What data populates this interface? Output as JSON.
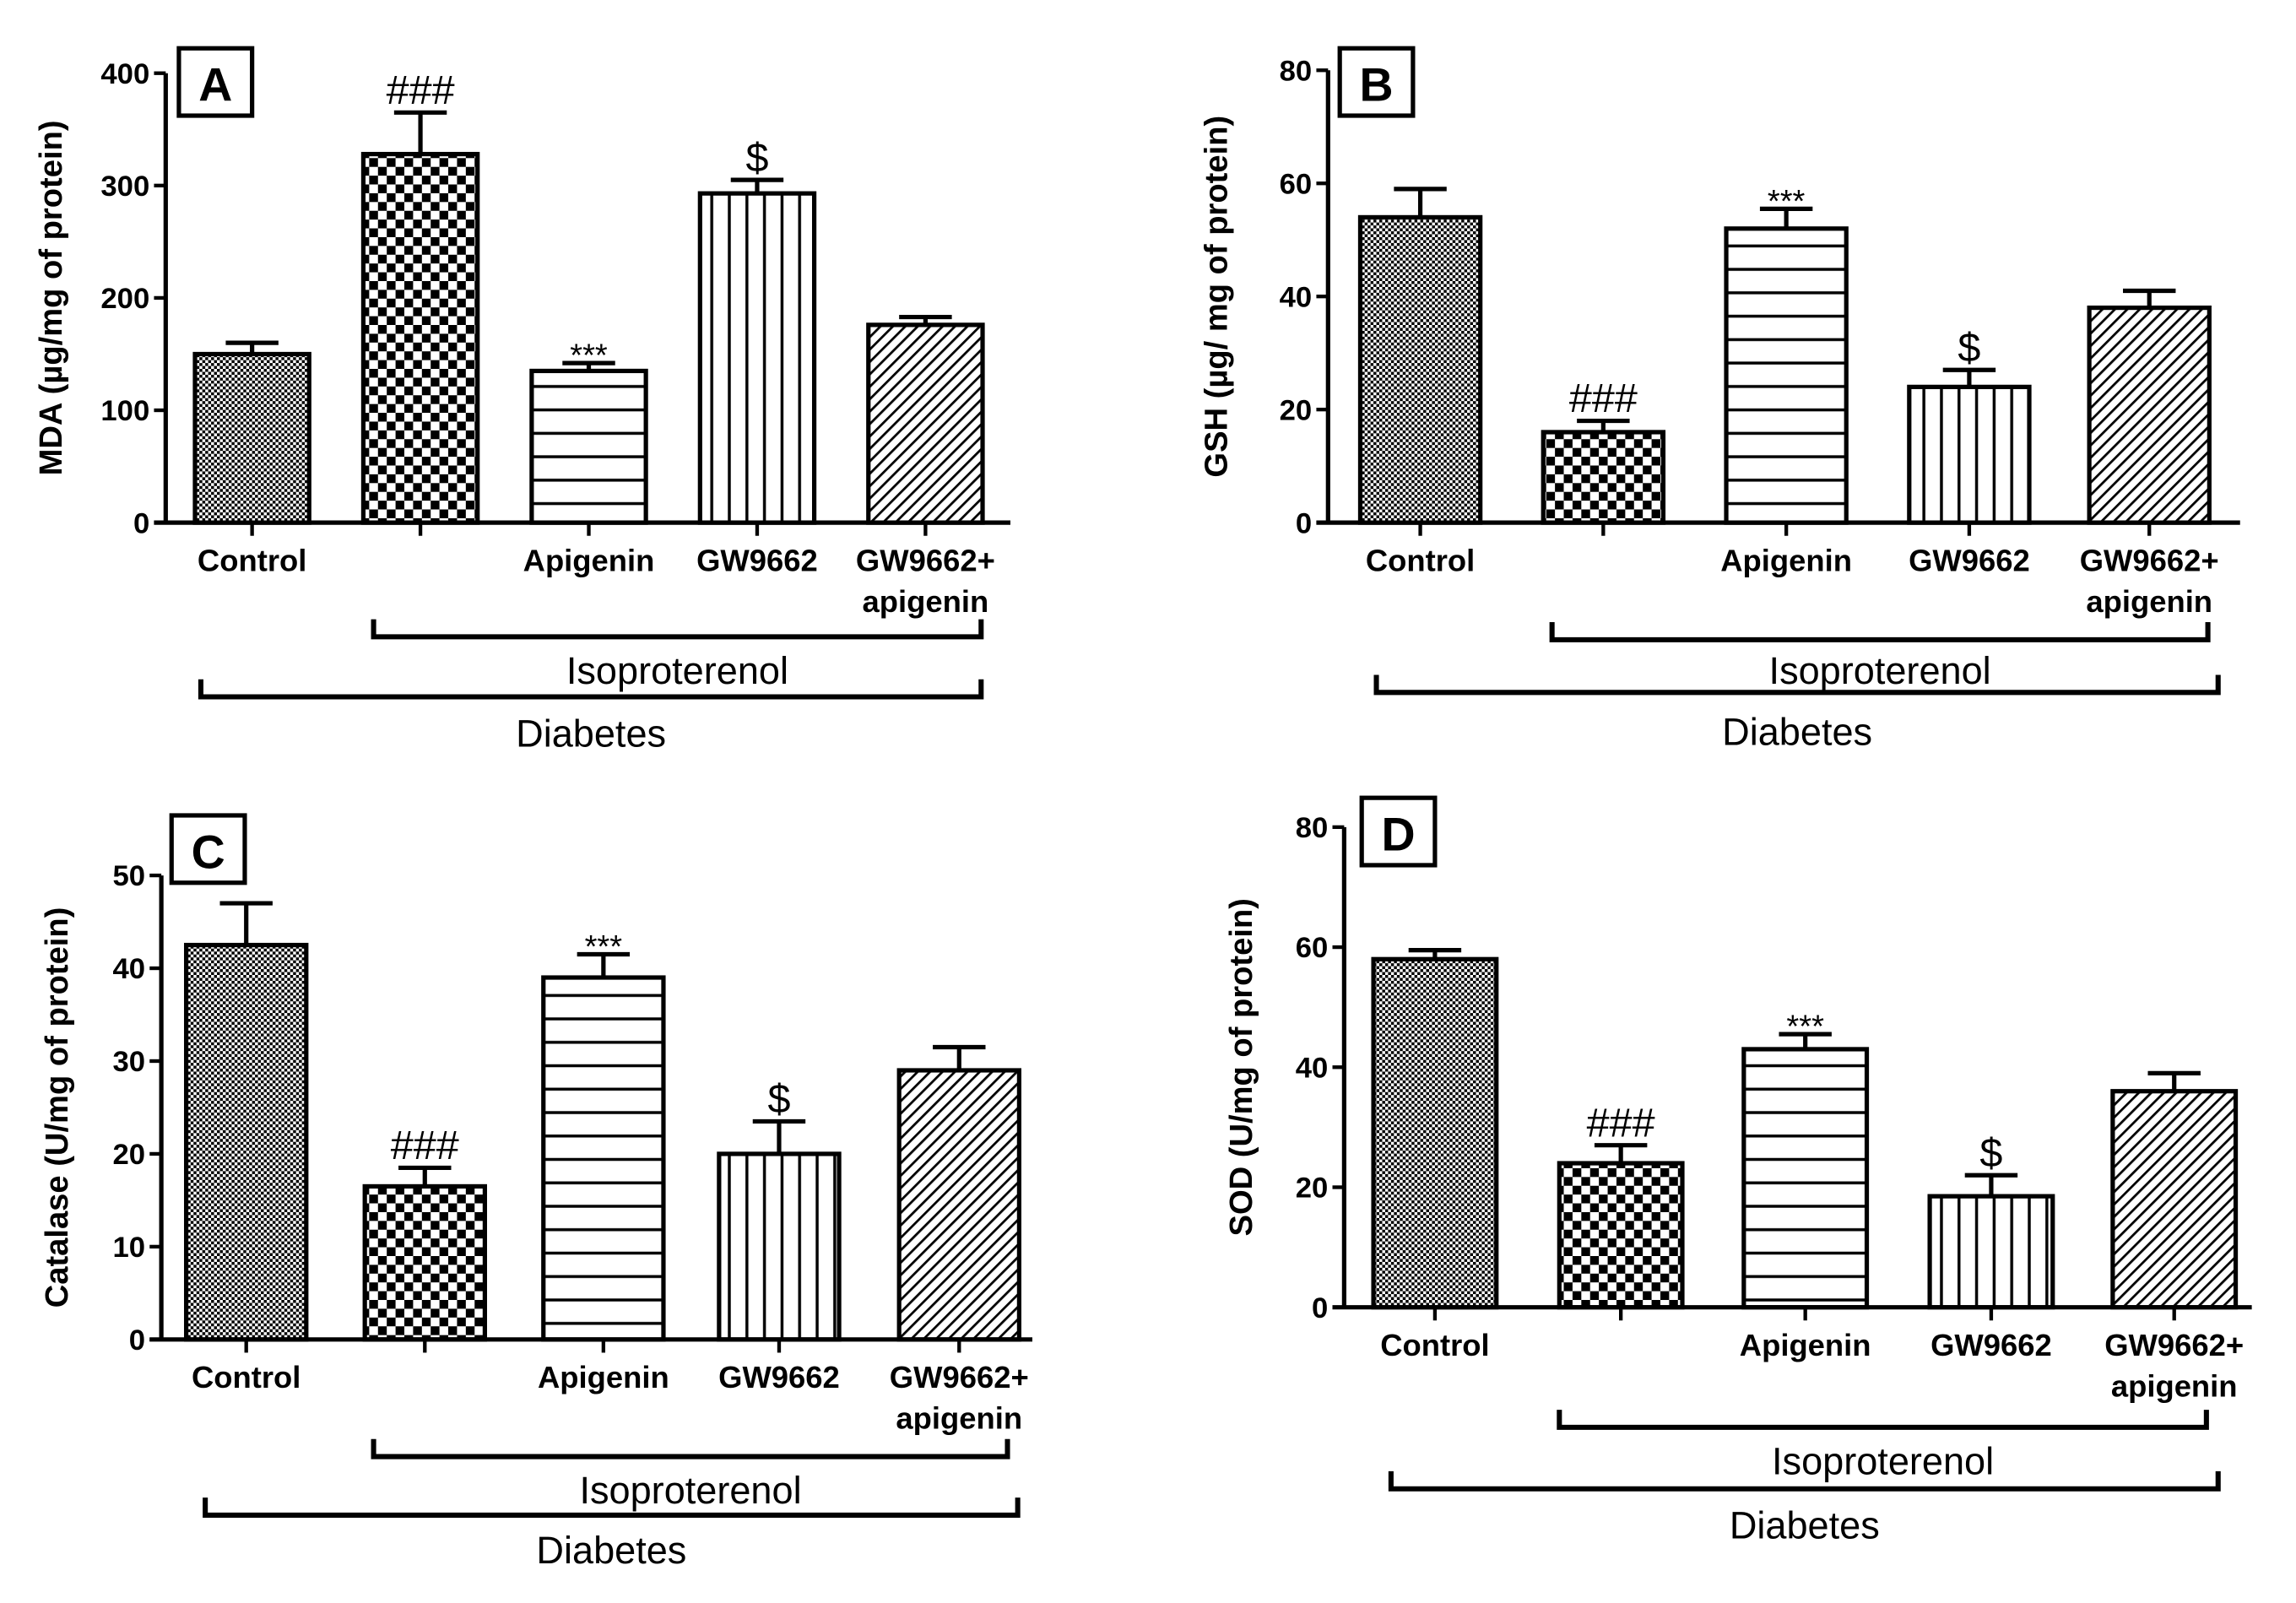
{
  "chart_data": [
    {
      "type": "bar",
      "panel": "A",
      "ylabel": "MDA (µg/mg of protein)",
      "ylim": [
        0,
        400
      ],
      "yticks": [
        0,
        100,
        200,
        300,
        400
      ],
      "categories": [
        "Control",
        "",
        "Apigenin",
        "GW9662",
        "GW9662+\napigenin"
      ],
      "values": [
        150,
        328,
        135,
        293,
        176
      ],
      "errors": [
        10,
        37,
        7,
        12,
        7
      ],
      "annotations": [
        "",
        "###",
        "***",
        "$",
        ""
      ],
      "groups": [
        {
          "label": "Isoproterenol",
          "from": 1,
          "to": 4
        },
        {
          "label": "Diabetes",
          "from": 0,
          "to": 4
        }
      ]
    },
    {
      "type": "bar",
      "panel": "B",
      "ylabel": "GSH (µg/ mg of protein)",
      "ylim": [
        0,
        80
      ],
      "yticks": [
        0,
        20,
        40,
        60,
        80
      ],
      "categories": [
        "Control",
        "",
        "Apigenin",
        "GW9662",
        "GW9662+\napigenin"
      ],
      "values": [
        54,
        16,
        52,
        24,
        38
      ],
      "errors": [
        5,
        2,
        3.5,
        3,
        3
      ],
      "annotations": [
        "",
        "###",
        "***",
        "$",
        ""
      ],
      "groups": [
        {
          "label": "Isoproterenol",
          "from": 1,
          "to": 4
        },
        {
          "label": "Diabetes",
          "from": 0,
          "to": 4
        }
      ]
    },
    {
      "type": "bar",
      "panel": "C",
      "ylabel": "Catalase (U/mg of protein)",
      "ylim": [
        0,
        50
      ],
      "yticks": [
        0,
        10,
        20,
        30,
        40,
        50
      ],
      "categories": [
        "Control",
        "",
        "Apigenin",
        "GW9662",
        "GW9662+\napigenin"
      ],
      "values": [
        42.5,
        16.5,
        39,
        20,
        29
      ],
      "errors": [
        4.5,
        2,
        2.5,
        3.5,
        2.5
      ],
      "annotations": [
        "",
        "###",
        "***",
        "$",
        ""
      ],
      "groups": [
        {
          "label": "Isoproterenol",
          "from": 1,
          "to": 4
        },
        {
          "label": "Diabetes",
          "from": 0,
          "to": 4
        }
      ]
    },
    {
      "type": "bar",
      "panel": "D",
      "ylabel": "SOD (U/mg of protein)",
      "ylim": [
        0,
        80
      ],
      "yticks": [
        0,
        20,
        40,
        60,
        80
      ],
      "categories": [
        "Control",
        "",
        "Apigenin",
        "GW9662",
        "GW9662+\napigenin"
      ],
      "values": [
        58,
        24,
        43,
        18.5,
        36
      ],
      "errors": [
        1.5,
        3,
        2.5,
        3.5,
        3
      ],
      "annotations": [
        "",
        "###",
        "***",
        "$",
        ""
      ],
      "groups": [
        {
          "label": "Isoproterenol",
          "from": 1,
          "to": 4
        },
        {
          "label": "Diabetes",
          "from": 0,
          "to": 4
        }
      ]
    }
  ]
}
